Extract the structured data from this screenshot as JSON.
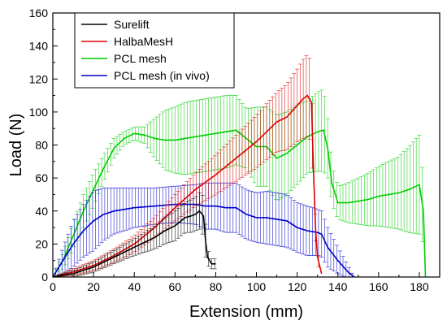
{
  "chart_data": {
    "type": "line",
    "xlabel": "Extension (mm)",
    "ylabel": "Load (N)",
    "xlim": [
      0,
      190
    ],
    "ylim": [
      0,
      160
    ],
    "x_ticks": [
      0,
      20,
      40,
      60,
      80,
      100,
      120,
      140,
      160,
      180
    ],
    "y_ticks": [
      0,
      20,
      40,
      60,
      80,
      100,
      120,
      140,
      160
    ],
    "grid": false,
    "legend_position": "top-left",
    "series": [
      {
        "name": "Surelift",
        "color": "#000000",
        "x": [
          0,
          10,
          20,
          30,
          40,
          50,
          55,
          60,
          65,
          68,
          70,
          72,
          74,
          75,
          76,
          78,
          80
        ],
        "y": [
          0,
          2,
          6,
          12,
          18,
          24,
          28,
          31,
          36,
          37,
          38,
          40,
          37,
          22,
          12,
          8,
          8
        ],
        "err": [
          0,
          2,
          3,
          4,
          5,
          7,
          8,
          9,
          9,
          10,
          10,
          11,
          12,
          10,
          5,
          3,
          3
        ]
      },
      {
        "name": "HalbaMesH",
        "color": "#e00000",
        "x": [
          0,
          10,
          20,
          30,
          40,
          50,
          60,
          70,
          80,
          90,
          100,
          110,
          115,
          120,
          123,
          125,
          127,
          128,
          129,
          130,
          132
        ],
        "y": [
          0,
          3,
          7,
          13,
          20,
          30,
          42,
          53,
          62,
          72,
          82,
          94,
          97,
          104,
          108,
          110,
          106,
          65,
          30,
          12,
          2
        ],
        "err": [
          0,
          2,
          3,
          4,
          5,
          6,
          8,
          10,
          12,
          14,
          16,
          18,
          20,
          22,
          24,
          25,
          24,
          15,
          8,
          4,
          2
        ]
      },
      {
        "name": "PCL mesh",
        "color": "#00cc00",
        "x": [
          0,
          5,
          10,
          15,
          20,
          25,
          30,
          35,
          40,
          45,
          50,
          55,
          60,
          65,
          70,
          75,
          80,
          85,
          90,
          95,
          100,
          105,
          110,
          115,
          120,
          125,
          130,
          133,
          135,
          137,
          140,
          145,
          150,
          155,
          160,
          165,
          170,
          175,
          180,
          182,
          183
        ],
        "y": [
          0,
          10,
          25,
          40,
          53,
          66,
          78,
          84,
          87,
          86,
          84,
          83,
          83,
          84,
          85,
          86,
          87,
          88,
          89,
          84,
          79,
          79,
          72,
          75,
          80,
          85,
          88,
          89,
          78,
          57,
          45,
          45,
          46,
          47,
          49,
          50,
          51,
          53,
          56,
          40,
          0
        ],
        "err": [
          0,
          5,
          8,
          10,
          10,
          8,
          6,
          4,
          4,
          5,
          12,
          18,
          20,
          22,
          22,
          22,
          22,
          22,
          21,
          18,
          24,
          24,
          26,
          25,
          24,
          22,
          24,
          25,
          18,
          12,
          10,
          12,
          14,
          16,
          18,
          20,
          22,
          26,
          30,
          20,
          0
        ]
      },
      {
        "name": "PCL mesh (in vivo)",
        "color": "#0000cc",
        "x": [
          0,
          5,
          10,
          15,
          20,
          25,
          30,
          40,
          50,
          60,
          70,
          75,
          80,
          85,
          90,
          95,
          100,
          105,
          110,
          115,
          120,
          125,
          130,
          132,
          135,
          140,
          145,
          148
        ],
        "y": [
          0,
          10,
          20,
          28,
          34,
          38,
          40,
          42,
          43,
          44,
          44,
          43,
          43,
          42,
          42,
          38,
          36,
          36,
          35,
          34,
          30,
          28,
          27,
          26,
          18,
          10,
          3,
          0
        ],
        "err": [
          0,
          8,
          14,
          16,
          18,
          16,
          14,
          12,
          11,
          11,
          12,
          14,
          14,
          15,
          15,
          15,
          15,
          16,
          16,
          16,
          15,
          15,
          14,
          14,
          12,
          8,
          4,
          0
        ]
      }
    ]
  }
}
